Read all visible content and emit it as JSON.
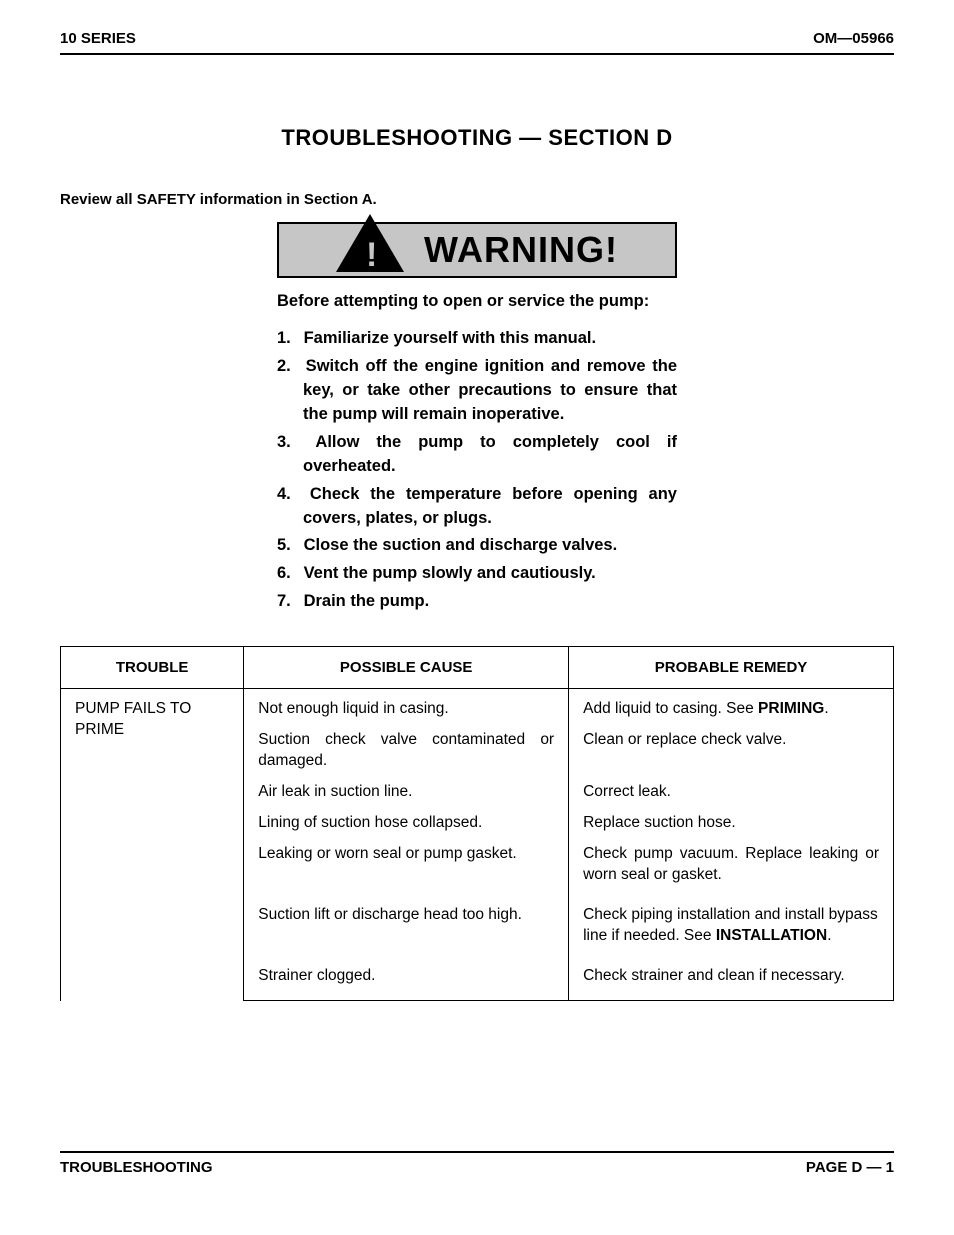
{
  "header": {
    "left": "10 SERIES",
    "right": "OM—05966"
  },
  "section_title": "TROUBLESHOOTING — SECTION D",
  "review_line": "Review all SAFETY information in Section A.",
  "warning": {
    "label": "WARNING!",
    "intro": "Before attempting to open or service the pump:",
    "items": [
      "Familiarize yourself with this manual.",
      "Switch off the engine ignition and remove the key, or take other precautions to ensure that the pump will remain inoperative.",
      "Allow the pump to completely cool if overheated.",
      "Check the temperature before opening any covers, plates, or plugs.",
      "Close the suction and discharge valves.",
      "Vent the pump slowly and cautiously.",
      "Drain the pump."
    ]
  },
  "table": {
    "headers": {
      "trouble": "TROUBLE",
      "cause": "POSSIBLE CAUSE",
      "remedy": "PROBABLE REMEDY"
    },
    "trouble_label": "PUMP FAILS TO PRIME",
    "rows": [
      {
        "cause": "Not enough liquid in casing.",
        "remedy_pre": "Add liquid to casing. See ",
        "remedy_bold": "PRIMING",
        "remedy_post": ".",
        "justify_cause": true,
        "justify_remedy": true
      },
      {
        "cause": "Suction check valve contaminated or damaged.",
        "remedy_pre": "Clean or replace check valve.",
        "remedy_bold": "",
        "remedy_post": "",
        "justify_cause": true,
        "justify_remedy": false
      },
      {
        "cause": "Air leak in suction line.",
        "remedy_pre": "Correct leak.",
        "remedy_bold": "",
        "remedy_post": "",
        "justify_cause": false,
        "justify_remedy": false
      },
      {
        "cause": "Lining of suction hose collapsed.",
        "remedy_pre": "Replace suction hose.",
        "remedy_bold": "",
        "remedy_post": "",
        "justify_cause": false,
        "justify_remedy": false
      },
      {
        "cause": "Leaking or worn seal or pump gasket.",
        "remedy_pre": "Check pump vacuum. Replace leaking or worn seal or gasket.",
        "remedy_bold": "",
        "remedy_post": "",
        "justify_cause": false,
        "justify_remedy": true,
        "extra_bottom": true
      },
      {
        "cause": "Suction lift or discharge head too high.",
        "remedy_pre": "Check piping installation and install bypass line if needed. See ",
        "remedy_bold": "INSTALLATION",
        "remedy_post": ".",
        "justify_cause": false,
        "justify_remedy": false,
        "extra_bottom": true
      },
      {
        "cause": "Strainer clogged.",
        "remedy_pre": "Check strainer and clean if necessary.",
        "remedy_bold": "",
        "remedy_post": "",
        "justify_cause": false,
        "justify_remedy": false
      }
    ]
  },
  "footer": {
    "left": "TROUBLESHOOTING",
    "right": "PAGE D — 1"
  },
  "colors": {
    "text": "#000000",
    "background": "#ffffff",
    "warning_bg": "#c6c6c6",
    "border": "#000000"
  }
}
